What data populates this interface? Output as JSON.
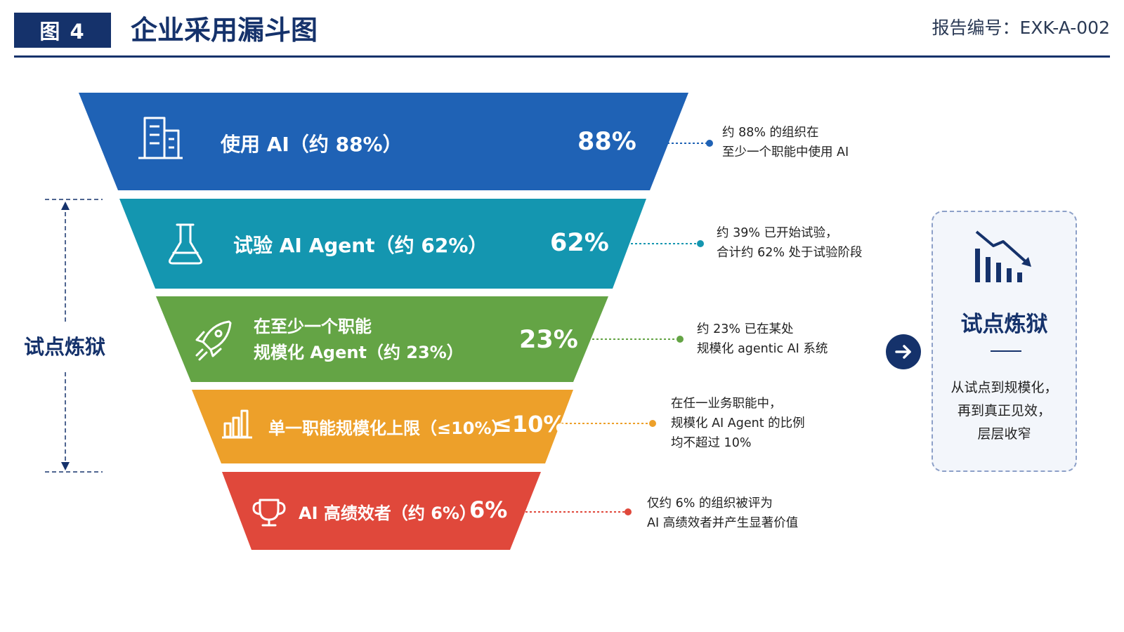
{
  "header": {
    "figure_label": "图 4",
    "title": "企业采用漏斗图",
    "report_number": "报告编号：EXK-A-002"
  },
  "chart_data": {
    "type": "funnel",
    "stages": [
      {
        "label": "使用 AI（约 88%）",
        "label_lines": [
          "使用 AI（约 88%）"
        ],
        "value": 88,
        "value_label": "88%",
        "color": "#1f62b5",
        "icon": "building-icon",
        "note": [
          "约 88% 的组织在",
          "至少一个职能中使用 AI"
        ]
      },
      {
        "label": "试验 AI Agent（约 62%）",
        "label_lines": [
          "试验 AI Agent（约 62%）"
        ],
        "value": 62,
        "value_label": "62%",
        "color": "#1496b0",
        "icon": "flask-icon",
        "note": [
          "约 39% 已开始试验，",
          "合计约 62% 处于试验阶段"
        ]
      },
      {
        "label": "在至少一个职能规模化 Agent（约 23%）",
        "label_lines": [
          "在至少一个职能",
          "规模化 Agent（约 23%）"
        ],
        "value": 23,
        "value_label": "23%",
        "color": "#64a445",
        "icon": "rocket-icon",
        "note": [
          "约 23% 已在某处",
          "规模化 agentic AI 系统"
        ]
      },
      {
        "label": "单一职能规模化上限（≤10%）",
        "label_lines": [
          "单一职能规模化上限（≤10%）"
        ],
        "value": 10,
        "value_label": "≤10%",
        "color": "#eda02a",
        "icon": "bar-chart-icon",
        "note": [
          "在任一业务职能中，",
          "规模化 AI Agent 的比例",
          "均不超过 10%"
        ]
      },
      {
        "label": "AI 高绩效者（约 6%）",
        "label_lines": [
          "AI 高绩效者（约 6%）"
        ],
        "value": 6,
        "value_label": "6%",
        "color": "#e0483b",
        "icon": "trophy-icon",
        "note": [
          "仅约 6% 的组织被评为",
          "AI 高绩效者并产生显著价值"
        ]
      }
    ],
    "bracket": {
      "label": "试点炼狱",
      "spans_stages": [
        "试验 AI Agent（约 62%）",
        "单一职能规模化上限（≤10%）"
      ]
    }
  },
  "side_panel": {
    "icon": "declining-bar-chart-icon",
    "title": "试点炼狱",
    "body": [
      "从试点到规模化，",
      "再到真正见效，",
      "层层收窄"
    ],
    "arrow_icon": "arrow-right-icon"
  }
}
